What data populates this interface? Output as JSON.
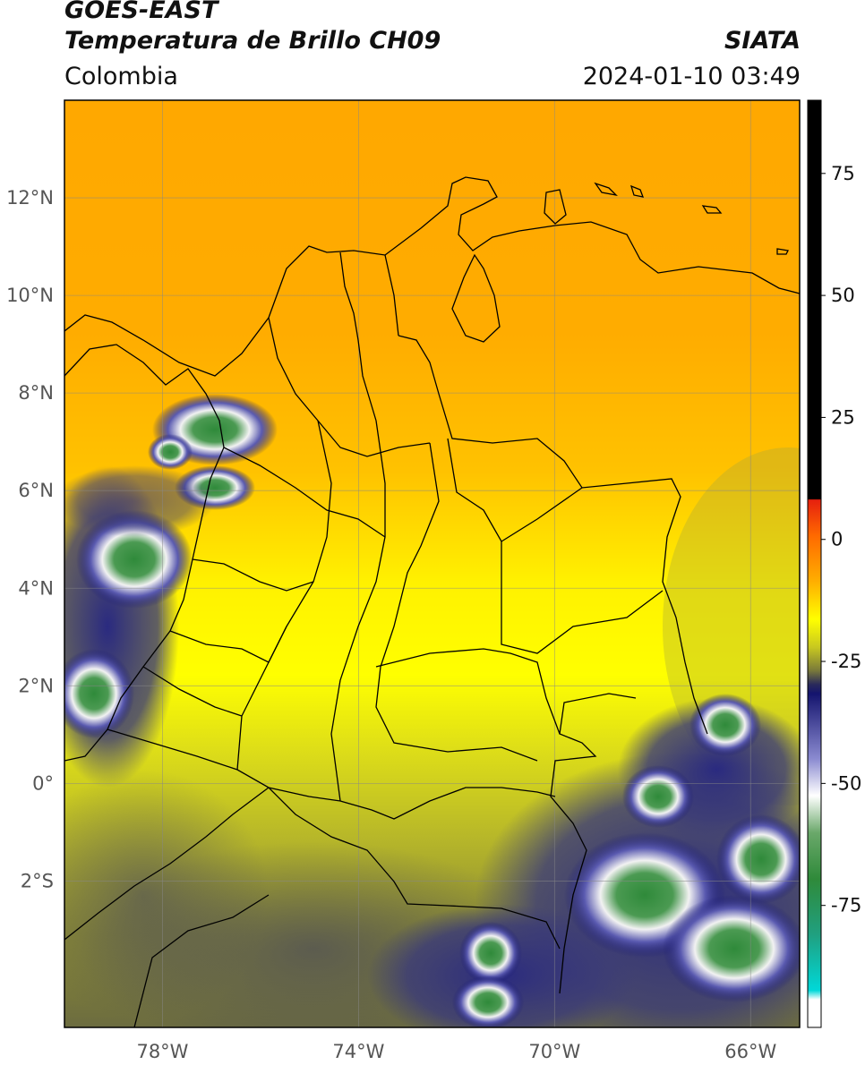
{
  "header": {
    "satellite": "GOES-EAST",
    "product": "Temperatura de Brillo CH09",
    "brand": "SIATA",
    "region": "Colombia",
    "datetime": "2024-01-10 03:49"
  },
  "map": {
    "lon_range": [
      -80,
      -65
    ],
    "lat_range": [
      -5,
      14
    ],
    "lat_ticks": [
      {
        "value": 12,
        "label": "12°N"
      },
      {
        "value": 10,
        "label": "10°N"
      },
      {
        "value": 8,
        "label": "8°N"
      },
      {
        "value": 6,
        "label": "6°N"
      },
      {
        "value": 4,
        "label": "4°N"
      },
      {
        "value": 2,
        "label": "2°N"
      },
      {
        "value": 0,
        "label": "0°"
      },
      {
        "value": -2,
        "label": "2°S"
      }
    ],
    "lon_ticks": [
      {
        "value": -78,
        "label": "78°W"
      },
      {
        "value": -74,
        "label": "74°W"
      },
      {
        "value": -70,
        "label": "70°W"
      },
      {
        "value": -66,
        "label": "66°W"
      }
    ],
    "grid": true
  },
  "colorbar": {
    "range": [
      -100,
      90
    ],
    "ticks": [
      {
        "value": 75,
        "label": "75"
      },
      {
        "value": 50,
        "label": "50"
      },
      {
        "value": 25,
        "label": "25"
      },
      {
        "value": 0,
        "label": "0"
      },
      {
        "value": -25,
        "label": "-25"
      },
      {
        "value": -50,
        "label": "-50"
      },
      {
        "value": -75,
        "label": "-75"
      }
    ],
    "colors": {
      "black": "#000000",
      "red": "#e6200e",
      "orange": "#ff9a00",
      "yellow": "#ffff00",
      "olive": "#8c8c2a",
      "dark_blue": "#14146e",
      "white": "#ffffff",
      "green": "#2f8a3a",
      "cyan": "#00d8d8"
    }
  }
}
